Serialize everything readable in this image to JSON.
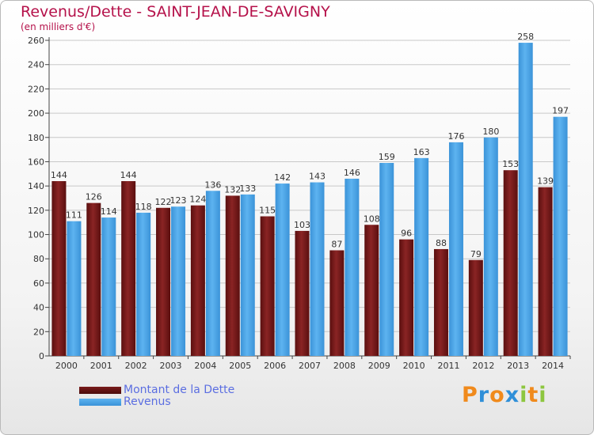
{
  "title": "Revenus/Dette - SAINT-JEAN-DE-SAVIGNY",
  "subtitle": "(en milliers d'€)",
  "logo": {
    "letters": [
      "P",
      "r",
      "o",
      "x",
      "i",
      "t",
      "i"
    ],
    "colors": [
      "#f08a1c",
      "#2f8fd8",
      "#f08a1c",
      "#2f8fd8",
      "#8dc63f",
      "#f08a1c",
      "#8dc63f"
    ]
  },
  "colors": {
    "dette": "#7a1a1a",
    "revenus": "#4aa3e6",
    "title": "#b5114a",
    "legend_text": "#5b6ee1"
  },
  "chart_data": {
    "type": "bar",
    "categories": [
      "2000",
      "2001",
      "2002",
      "2003",
      "2004",
      "2005",
      "2006",
      "2007",
      "2008",
      "2009",
      "2010",
      "2011",
      "2012",
      "2013",
      "2014"
    ],
    "series": [
      {
        "name": "Montant de la Dette",
        "values": [
          144,
          126,
          144,
          122,
          124,
          132,
          115,
          103,
          87,
          108,
          96,
          88,
          79,
          153,
          139
        ]
      },
      {
        "name": "Revenus",
        "values": [
          111,
          114,
          118,
          123,
          136,
          133,
          142,
          143,
          146,
          159,
          163,
          176,
          180,
          258,
          197
        ]
      }
    ],
    "ylim": [
      0,
      260
    ],
    "yticks": [
      0,
      20,
      40,
      60,
      80,
      100,
      120,
      140,
      160,
      180,
      200,
      220,
      240,
      260
    ],
    "grid": true,
    "legend": "bottom-left"
  }
}
